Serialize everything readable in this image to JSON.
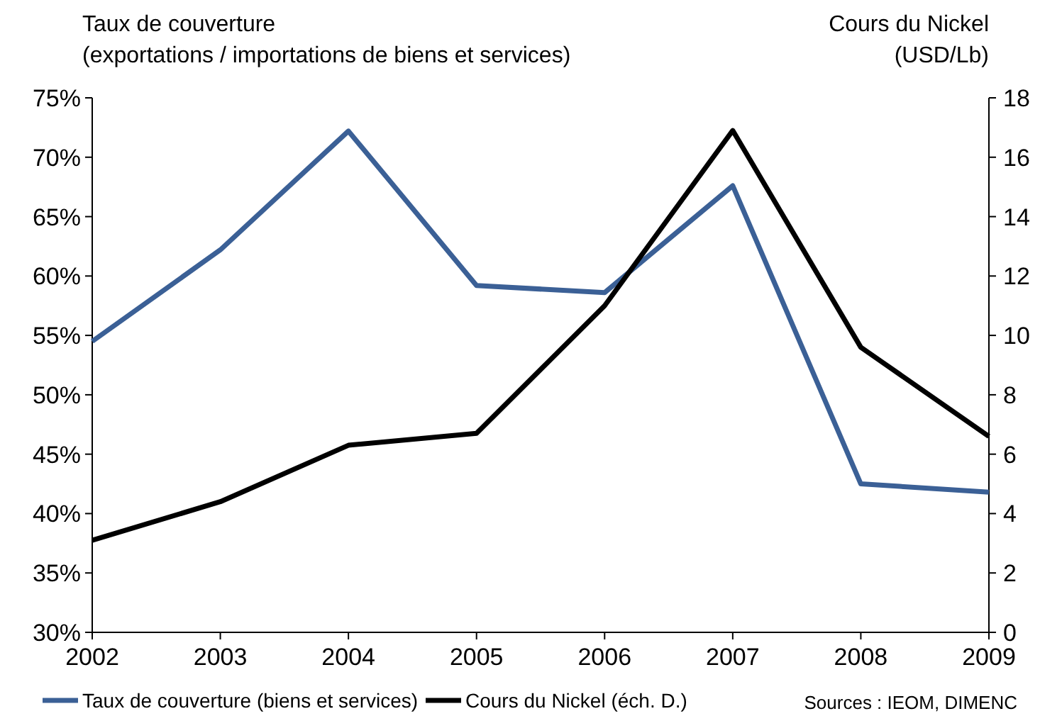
{
  "chart_data": {
    "type": "line",
    "ylabel": "Taux de couverture\n(exportations / importations de biens et services)",
    "y2label": "Cours du Nickel\n(USD/Lb)",
    "x": [
      2002,
      2003,
      2004,
      2005,
      2006,
      2007,
      2008,
      2009
    ],
    "xlim": [
      2002,
      2009
    ],
    "xticks": [
      2002,
      2003,
      2004,
      2005,
      2006,
      2007,
      2008,
      2009
    ],
    "ylim": [
      30,
      75
    ],
    "yticks": [
      {
        "value": 30,
        "label": "30%"
      },
      {
        "value": 35,
        "label": "35%"
      },
      {
        "value": 40,
        "label": "40%"
      },
      {
        "value": 45,
        "label": "45%"
      },
      {
        "value": 50,
        "label": "50%"
      },
      {
        "value": 55,
        "label": "55%"
      },
      {
        "value": 60,
        "label": "60%"
      },
      {
        "value": 65,
        "label": "65%"
      },
      {
        "value": 70,
        "label": "70%"
      },
      {
        "value": 75,
        "label": "75%"
      }
    ],
    "y2lim": [
      0,
      18
    ],
    "y2ticks": [
      0,
      2,
      4,
      6,
      8,
      10,
      12,
      14,
      16,
      18
    ],
    "series": [
      {
        "name": "Taux de couverture (biens et services)",
        "color": "#3b6096",
        "values": [
          54.5,
          62.2,
          72.2,
          59.2,
          58.6,
          67.6,
          42.5,
          41.8
        ]
      },
      {
        "name": "Cours du Nickel (éch. D.)",
        "color": "#000000",
        "axis": "y2",
        "values": [
          3.1,
          4.4,
          6.3,
          6.7,
          11,
          16.9,
          9.6,
          6.6
        ]
      }
    ],
    "legend": "bottom",
    "grid": false,
    "marker": "none",
    "line_style": "solid",
    "annotations": [
      "Sources : IEOM, DIMENC"
    ]
  }
}
